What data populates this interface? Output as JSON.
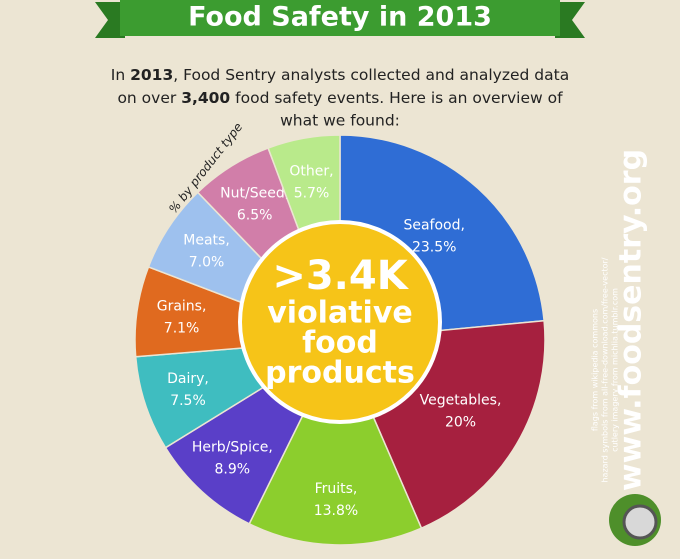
{
  "chart_data": {
    "type": "donut",
    "title": "Food Safety in 2013",
    "intro": [
      "In ",
      "2013",
      ", Food Sentry analysts collected and analyzed data",
      "on over ",
      "3,400",
      " food safety events.  Here is an overview of",
      "what we found:"
    ],
    "subtitle": "% by product type",
    "center_text": [
      ">3.4K",
      "violative",
      "food",
      "products"
    ],
    "categories": [
      "Seafood,",
      "Vegetables,",
      "Fruits,",
      "Herb/Spice,",
      "Dairy,",
      "Grains,",
      "Meats,",
      "Nut/Seed,",
      "Other,"
    ],
    "values": [
      23.5,
      20,
      13.8,
      8.9,
      7.5,
      7.1,
      7.0,
      6.5,
      5.7
    ],
    "value_labels": [
      "23.5%",
      "20%",
      "13.8%",
      "8.9%",
      "7.5%",
      "7.1%",
      "7.0%",
      "6.5%",
      "5.7%"
    ],
    "colors": [
      "#2f6dd5",
      "#a6203f",
      "#8cce2d",
      "#5a3fc8",
      "#3fbdc0",
      "#e06a1f",
      "#9ec1ee",
      "#d17ea9",
      "#b9ea8b"
    ],
    "website": "www.foodsentry.org",
    "credits": [
      "flags from wikipedia commons",
      "hazard symbols from all-free-download.com/free-vector/",
      "cutlery imagery from michlia.tumblr.com"
    ]
  }
}
